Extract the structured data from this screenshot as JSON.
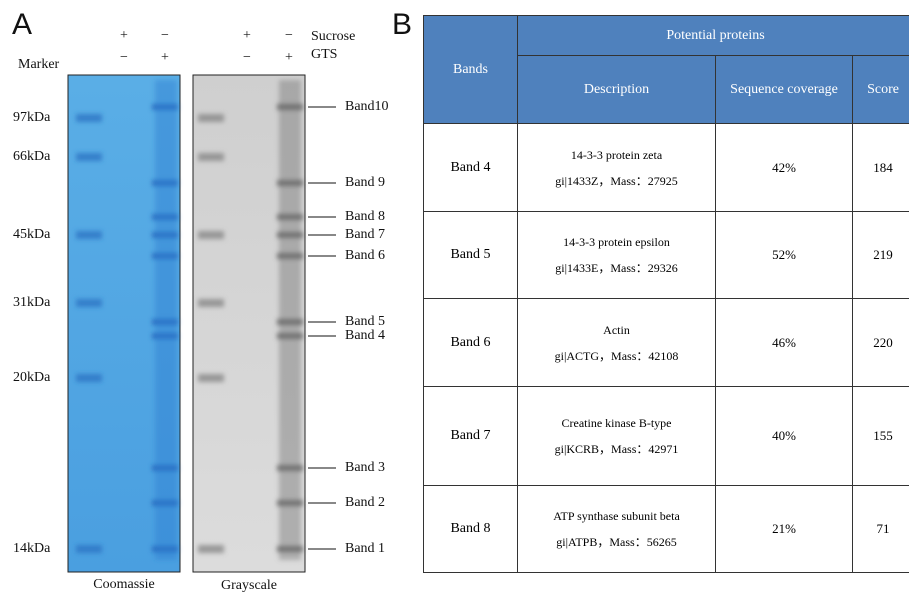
{
  "panel_a": {
    "label": "A",
    "treatments": [
      {
        "name": "Sucrose",
        "lanes": [
          "+",
          "−",
          "+",
          "−"
        ]
      },
      {
        "name": "GTS",
        "lanes": [
          "−",
          "+",
          "−",
          "+"
        ]
      }
    ],
    "marker_label": "Marker",
    "markers": [
      "97kDa",
      "66kDa",
      "45kDa",
      "31kDa",
      "20kDa",
      "14kDa"
    ],
    "bands": [
      "Band10",
      "Band 9",
      "Band 8",
      "Band 7",
      "Band 6",
      "Band 5",
      "Band 4",
      "Band 3",
      "Band 2",
      "Band 1"
    ],
    "gels": [
      "Coomassie",
      "Grayscale"
    ]
  },
  "panel_b": {
    "label": "B",
    "table": {
      "header": {
        "bands": "Bands",
        "group": "Potential proteins",
        "columns": [
          "Description",
          "Sequence coverage",
          "Score"
        ]
      },
      "rows": [
        [
          "Band 4",
          "14-3-3 protein zeta",
          "gi|1433Z，Mass：27925",
          "42%",
          184
        ],
        [
          "Band 5",
          "14-3-3 protein epsilon",
          "gi|1433E，Mass：29326",
          "52%",
          219
        ],
        [
          "Band 6",
          "Actin",
          "gi|ACTG，Mass：42108",
          "46%",
          220
        ],
        [
          "Band 7",
          "Creatine kinase B-type",
          "gi|KCRB，Mass：42971",
          "40%",
          155
        ],
        [
          "Band 8",
          "ATP synthase subunit beta",
          "gi|ATPB，Mass：56265",
          "21%",
          71
        ]
      ]
    }
  }
}
